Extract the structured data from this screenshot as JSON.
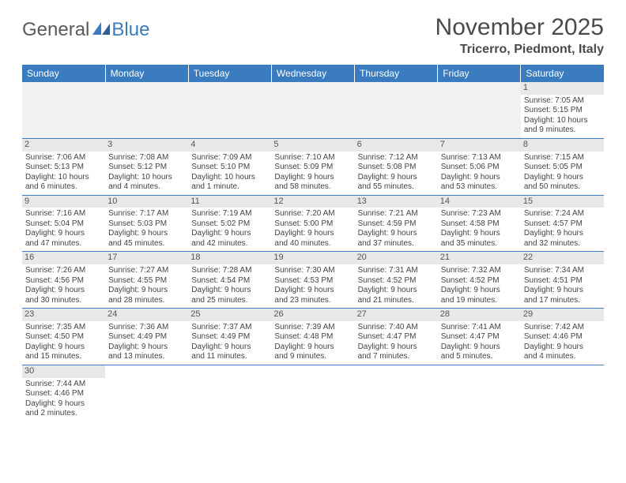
{
  "logo": {
    "text1": "General",
    "text2": "Blue"
  },
  "title": {
    "month": "November 2025",
    "location": "Tricerro, Piedmont, Italy"
  },
  "colors": {
    "header_bg": "#3b7bbf",
    "header_fg": "#ffffff",
    "daynum_bg": "#e8e8e8"
  },
  "day_headers": [
    "Sunday",
    "Monday",
    "Tuesday",
    "Wednesday",
    "Thursday",
    "Friday",
    "Saturday"
  ],
  "weeks": [
    [
      null,
      null,
      null,
      null,
      null,
      null,
      {
        "n": "1",
        "sunrise": "Sunrise: 7:05 AM",
        "sunset": "Sunset: 5:15 PM",
        "day1": "Daylight: 10 hours",
        "day2": "and 9 minutes."
      }
    ],
    [
      {
        "n": "2",
        "sunrise": "Sunrise: 7:06 AM",
        "sunset": "Sunset: 5:13 PM",
        "day1": "Daylight: 10 hours",
        "day2": "and 6 minutes."
      },
      {
        "n": "3",
        "sunrise": "Sunrise: 7:08 AM",
        "sunset": "Sunset: 5:12 PM",
        "day1": "Daylight: 10 hours",
        "day2": "and 4 minutes."
      },
      {
        "n": "4",
        "sunrise": "Sunrise: 7:09 AM",
        "sunset": "Sunset: 5:10 PM",
        "day1": "Daylight: 10 hours",
        "day2": "and 1 minute."
      },
      {
        "n": "5",
        "sunrise": "Sunrise: 7:10 AM",
        "sunset": "Sunset: 5:09 PM",
        "day1": "Daylight: 9 hours",
        "day2": "and 58 minutes."
      },
      {
        "n": "6",
        "sunrise": "Sunrise: 7:12 AM",
        "sunset": "Sunset: 5:08 PM",
        "day1": "Daylight: 9 hours",
        "day2": "and 55 minutes."
      },
      {
        "n": "7",
        "sunrise": "Sunrise: 7:13 AM",
        "sunset": "Sunset: 5:06 PM",
        "day1": "Daylight: 9 hours",
        "day2": "and 53 minutes."
      },
      {
        "n": "8",
        "sunrise": "Sunrise: 7:15 AM",
        "sunset": "Sunset: 5:05 PM",
        "day1": "Daylight: 9 hours",
        "day2": "and 50 minutes."
      }
    ],
    [
      {
        "n": "9",
        "sunrise": "Sunrise: 7:16 AM",
        "sunset": "Sunset: 5:04 PM",
        "day1": "Daylight: 9 hours",
        "day2": "and 47 minutes."
      },
      {
        "n": "10",
        "sunrise": "Sunrise: 7:17 AM",
        "sunset": "Sunset: 5:03 PM",
        "day1": "Daylight: 9 hours",
        "day2": "and 45 minutes."
      },
      {
        "n": "11",
        "sunrise": "Sunrise: 7:19 AM",
        "sunset": "Sunset: 5:02 PM",
        "day1": "Daylight: 9 hours",
        "day2": "and 42 minutes."
      },
      {
        "n": "12",
        "sunrise": "Sunrise: 7:20 AM",
        "sunset": "Sunset: 5:00 PM",
        "day1": "Daylight: 9 hours",
        "day2": "and 40 minutes."
      },
      {
        "n": "13",
        "sunrise": "Sunrise: 7:21 AM",
        "sunset": "Sunset: 4:59 PM",
        "day1": "Daylight: 9 hours",
        "day2": "and 37 minutes."
      },
      {
        "n": "14",
        "sunrise": "Sunrise: 7:23 AM",
        "sunset": "Sunset: 4:58 PM",
        "day1": "Daylight: 9 hours",
        "day2": "and 35 minutes."
      },
      {
        "n": "15",
        "sunrise": "Sunrise: 7:24 AM",
        "sunset": "Sunset: 4:57 PM",
        "day1": "Daylight: 9 hours",
        "day2": "and 32 minutes."
      }
    ],
    [
      {
        "n": "16",
        "sunrise": "Sunrise: 7:26 AM",
        "sunset": "Sunset: 4:56 PM",
        "day1": "Daylight: 9 hours",
        "day2": "and 30 minutes."
      },
      {
        "n": "17",
        "sunrise": "Sunrise: 7:27 AM",
        "sunset": "Sunset: 4:55 PM",
        "day1": "Daylight: 9 hours",
        "day2": "and 28 minutes."
      },
      {
        "n": "18",
        "sunrise": "Sunrise: 7:28 AM",
        "sunset": "Sunset: 4:54 PM",
        "day1": "Daylight: 9 hours",
        "day2": "and 25 minutes."
      },
      {
        "n": "19",
        "sunrise": "Sunrise: 7:30 AM",
        "sunset": "Sunset: 4:53 PM",
        "day1": "Daylight: 9 hours",
        "day2": "and 23 minutes."
      },
      {
        "n": "20",
        "sunrise": "Sunrise: 7:31 AM",
        "sunset": "Sunset: 4:52 PM",
        "day1": "Daylight: 9 hours",
        "day2": "and 21 minutes."
      },
      {
        "n": "21",
        "sunrise": "Sunrise: 7:32 AM",
        "sunset": "Sunset: 4:52 PM",
        "day1": "Daylight: 9 hours",
        "day2": "and 19 minutes."
      },
      {
        "n": "22",
        "sunrise": "Sunrise: 7:34 AM",
        "sunset": "Sunset: 4:51 PM",
        "day1": "Daylight: 9 hours",
        "day2": "and 17 minutes."
      }
    ],
    [
      {
        "n": "23",
        "sunrise": "Sunrise: 7:35 AM",
        "sunset": "Sunset: 4:50 PM",
        "day1": "Daylight: 9 hours",
        "day2": "and 15 minutes."
      },
      {
        "n": "24",
        "sunrise": "Sunrise: 7:36 AM",
        "sunset": "Sunset: 4:49 PM",
        "day1": "Daylight: 9 hours",
        "day2": "and 13 minutes."
      },
      {
        "n": "25",
        "sunrise": "Sunrise: 7:37 AM",
        "sunset": "Sunset: 4:49 PM",
        "day1": "Daylight: 9 hours",
        "day2": "and 11 minutes."
      },
      {
        "n": "26",
        "sunrise": "Sunrise: 7:39 AM",
        "sunset": "Sunset: 4:48 PM",
        "day1": "Daylight: 9 hours",
        "day2": "and 9 minutes."
      },
      {
        "n": "27",
        "sunrise": "Sunrise: 7:40 AM",
        "sunset": "Sunset: 4:47 PM",
        "day1": "Daylight: 9 hours",
        "day2": "and 7 minutes."
      },
      {
        "n": "28",
        "sunrise": "Sunrise: 7:41 AM",
        "sunset": "Sunset: 4:47 PM",
        "day1": "Daylight: 9 hours",
        "day2": "and 5 minutes."
      },
      {
        "n": "29",
        "sunrise": "Sunrise: 7:42 AM",
        "sunset": "Sunset: 4:46 PM",
        "day1": "Daylight: 9 hours",
        "day2": "and 4 minutes."
      }
    ],
    [
      {
        "n": "30",
        "sunrise": "Sunrise: 7:44 AM",
        "sunset": "Sunset: 4:46 PM",
        "day1": "Daylight: 9 hours",
        "day2": "and 2 minutes."
      },
      null,
      null,
      null,
      null,
      null,
      null
    ]
  ]
}
